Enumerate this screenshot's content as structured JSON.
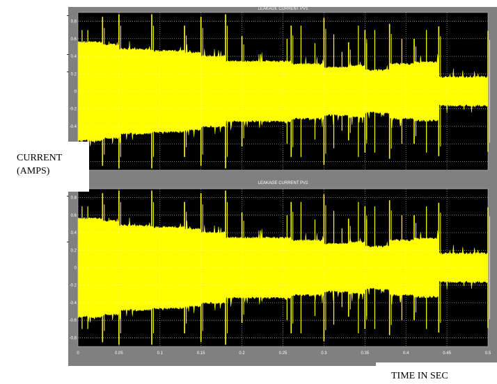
{
  "y_axis_label": "CURRENT\n(AMPS)",
  "x_axis_label": "TIME IN SEC",
  "colors": {
    "signal": "#ffff00",
    "plot_background": "#000000",
    "grid": "#ffffff",
    "panel": "#808080",
    "tick_text": "#ffffff"
  },
  "chart_data": [
    {
      "type": "area",
      "title": "LEAKAGE CURRENT PV1",
      "xlim": [
        0,
        0.5
      ],
      "ylim": [
        -0.9,
        0.9
      ],
      "y_ticks": [
        "0.8",
        "0.6",
        "0.4",
        "0.2",
        "0",
        "-0.2",
        "-0.4",
        "-0.6",
        "-0.8"
      ],
      "x_ticks": [],
      "grid": true,
      "series": [
        {
          "x": [
            0,
            0.03,
            0.05,
            0.09,
            0.13,
            0.15,
            0.18,
            0.2,
            0.26,
            0.3,
            0.33,
            0.35,
            0.38,
            0.41,
            0.44,
            0.5
          ],
          "envelope": [
            0.55,
            0.52,
            0.47,
            0.45,
            0.43,
            0.39,
            0.33,
            0.33,
            0.3,
            0.26,
            0.28,
            0.23,
            0.3,
            0.32,
            0.15,
            0.13
          ]
        }
      ]
    },
    {
      "type": "area",
      "title": "LEAKAGE CURRENT PV2",
      "xlim": [
        0,
        0.5
      ],
      "ylim": [
        -0.9,
        0.9
      ],
      "y_ticks": [
        "0.8",
        "0.6",
        "0.4",
        "0.2",
        "0",
        "-0.2",
        "-0.4",
        "-0.6",
        "-0.8"
      ],
      "x_ticks": [
        "0",
        "0.05",
        "0.1",
        "0.15",
        "0.2",
        "0.25",
        "0.3",
        "0.35",
        "0.4",
        "0.45",
        "0.5"
      ],
      "grid": true,
      "series": [
        {
          "x": [
            0,
            0.03,
            0.05,
            0.09,
            0.13,
            0.15,
            0.18,
            0.2,
            0.26,
            0.3,
            0.33,
            0.35,
            0.38,
            0.41,
            0.44,
            0.5
          ],
          "envelope": [
            0.55,
            0.52,
            0.47,
            0.45,
            0.43,
            0.39,
            0.33,
            0.33,
            0.3,
            0.26,
            0.28,
            0.23,
            0.3,
            0.32,
            0.15,
            0.13
          ]
        }
      ]
    }
  ]
}
